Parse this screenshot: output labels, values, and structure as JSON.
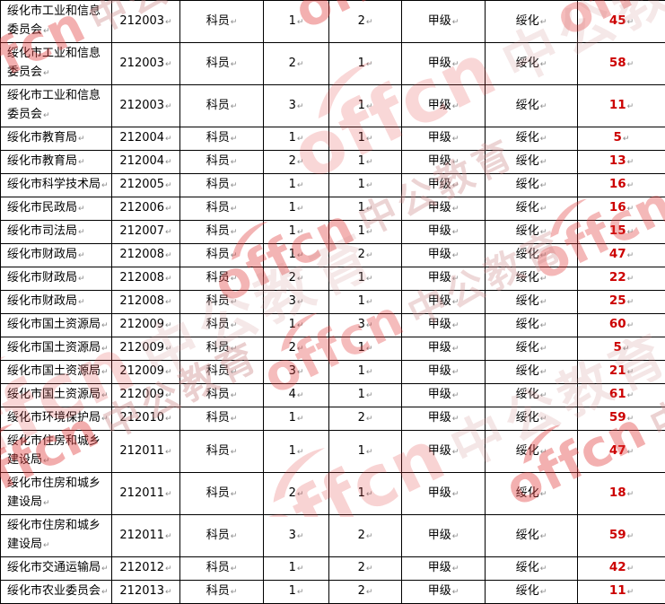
{
  "table": {
    "rows": [
      [
        "绥化市工业和信息委员会",
        "212003",
        "科员",
        "1",
        "2",
        "甲级",
        "绥化",
        "45"
      ],
      [
        "绥化市工业和信息委员会",
        "212003",
        "科员",
        "2",
        "1",
        "甲级",
        "绥化",
        "58"
      ],
      [
        "绥化市工业和信息委员会",
        "212003",
        "科员",
        "3",
        "1",
        "甲级",
        "绥化",
        "11"
      ],
      [
        "绥化市教育局",
        "212004",
        "科员",
        "1",
        "1",
        "甲级",
        "绥化",
        "5"
      ],
      [
        "绥化市教育局",
        "212004",
        "科员",
        "2",
        "1",
        "甲级",
        "绥化",
        "13"
      ],
      [
        "绥化市科学技术局",
        "212005",
        "科员",
        "1",
        "1",
        "甲级",
        "绥化",
        "16"
      ],
      [
        "绥化市民政局",
        "212006",
        "科员",
        "1",
        "1",
        "甲级",
        "绥化",
        "16"
      ],
      [
        "绥化市司法局",
        "212007",
        "科员",
        "1",
        "1",
        "甲级",
        "绥化",
        "15"
      ],
      [
        "绥化市财政局",
        "212008",
        "科员",
        "1",
        "2",
        "甲级",
        "绥化",
        "47"
      ],
      [
        "绥化市财政局",
        "212008",
        "科员",
        "2",
        "1",
        "甲级",
        "绥化",
        "22"
      ],
      [
        "绥化市财政局",
        "212008",
        "科员",
        "3",
        "1",
        "甲级",
        "绥化",
        "25"
      ],
      [
        "绥化市国土资源局",
        "212009",
        "科员",
        "1",
        "3",
        "甲级",
        "绥化",
        "60"
      ],
      [
        "绥化市国土资源局",
        "212009",
        "科员",
        "2",
        "1",
        "甲级",
        "绥化",
        "5"
      ],
      [
        "绥化市国土资源局",
        "212009",
        "科员",
        "3",
        "1",
        "甲级",
        "绥化",
        "21"
      ],
      [
        "绥化市国土资源局",
        "212009",
        "科员",
        "4",
        "1",
        "甲级",
        "绥化",
        "61"
      ],
      [
        "绥化市环境保护局",
        "212010",
        "科员",
        "1",
        "2",
        "甲级",
        "绥化",
        "59"
      ],
      [
        "绥化市住房和城乡建设局",
        "212011",
        "科员",
        "1",
        "1",
        "甲级",
        "绥化",
        "47"
      ],
      [
        "绥化市住房和城乡建设局",
        "212011",
        "科员",
        "2",
        "1",
        "甲级",
        "绥化",
        "18"
      ],
      [
        "绥化市住房和城乡建设局",
        "212011",
        "科员",
        "3",
        "2",
        "甲级",
        "绥化",
        "59"
      ],
      [
        "绥化市交通运输局",
        "212012",
        "科员",
        "1",
        "2",
        "甲级",
        "绥化",
        "42"
      ],
      [
        "绥化市农业委员会",
        "212013",
        "科员",
        "1",
        "2",
        "甲级",
        "绥化",
        "11"
      ]
    ]
  },
  "marks": {
    "line_break": "↵"
  },
  "watermark": {
    "latin": "offcn",
    "cjk": "中公教育"
  },
  "colors": {
    "applicant_count_red": "#cc0000",
    "table_border": "#000000",
    "watermark_red": "#e23d3d",
    "watermark_pink": "#cf8f8f",
    "format_mark_gray": "#8a8a8a"
  }
}
